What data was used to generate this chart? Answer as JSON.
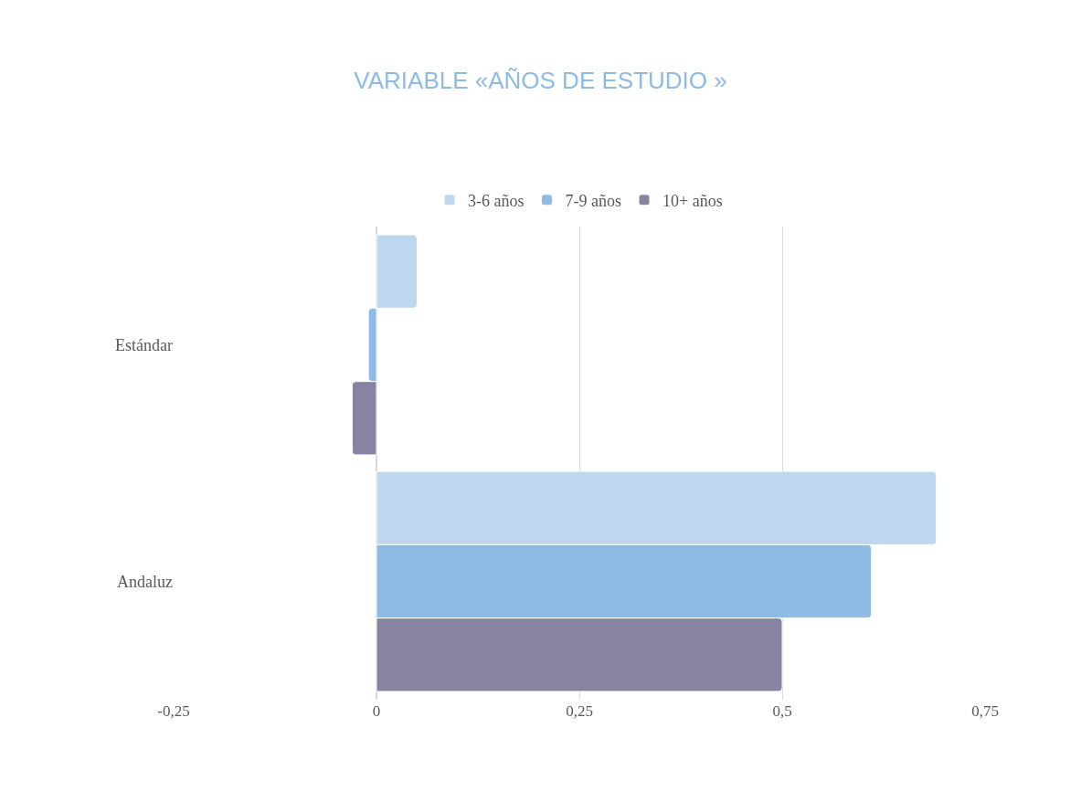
{
  "chart_data": {
    "type": "bar",
    "orientation": "horizontal",
    "title": "VARIABLE «AÑOS DE ESTUDIO »",
    "categories": [
      "Estándar",
      "Andaluz"
    ],
    "series": [
      {
        "name": "3-6 años",
        "color": "#bdd7ee",
        "values": [
          0.05,
          0.69
        ]
      },
      {
        "name": "7-9 años",
        "color": "#8dbbe3",
        "values": [
          -0.01,
          0.61
        ]
      },
      {
        "name": "10+ años",
        "color": "#8883a0",
        "values": [
          -0.03,
          0.5
        ]
      }
    ],
    "xlim": [
      -0.25,
      0.75
    ],
    "xticks": [
      {
        "value": -0.25,
        "label": "-0,25"
      },
      0,
      {
        "value": 0.25,
        "label": "0,25"
      },
      {
        "value": 0.5,
        "label": "0,5"
      },
      {
        "value": 0.75,
        "label": "0,75"
      }
    ],
    "grid": "x",
    "legend": "top"
  }
}
